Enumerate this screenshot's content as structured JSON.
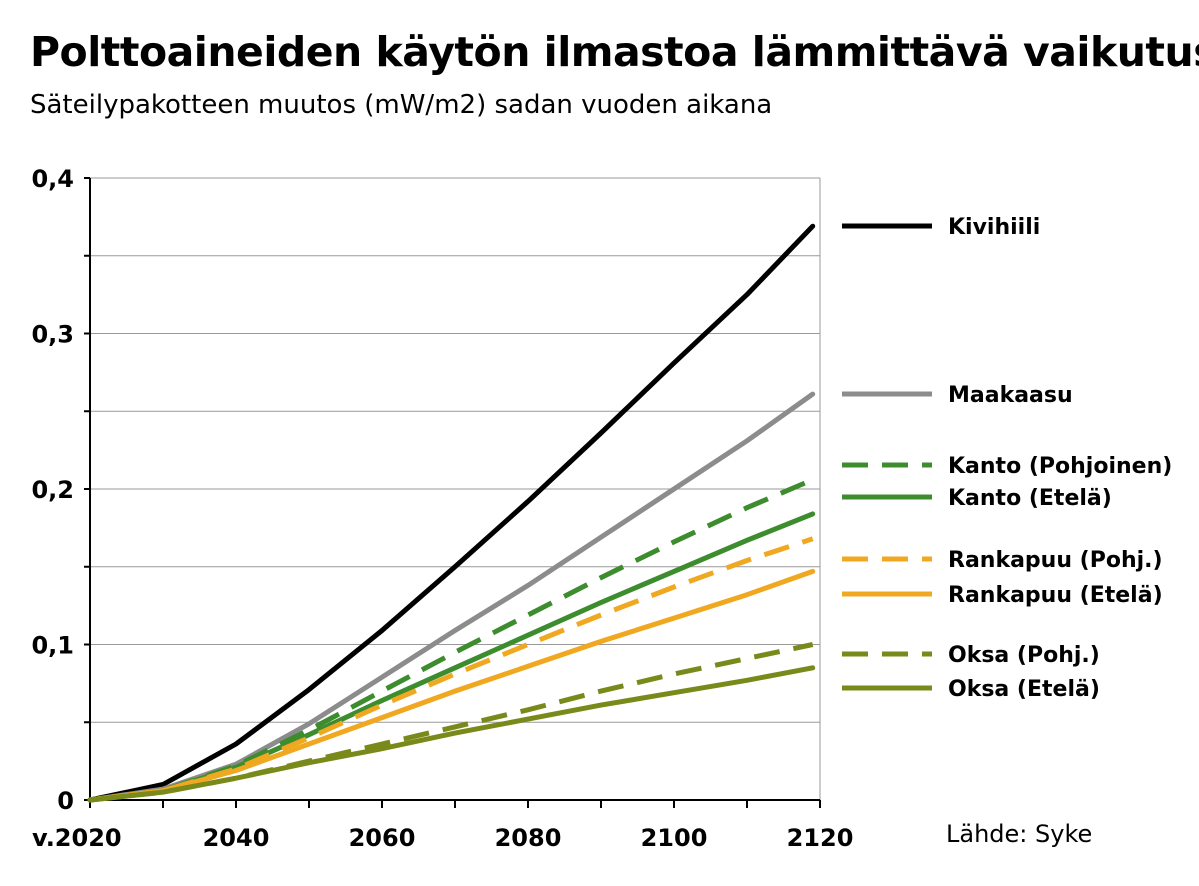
{
  "title": "Polttoaineiden käytön ilmastoa lämmittävä vaikutus",
  "subtitle": "Säteilypakotteen muutos (mW/m2) sadan vuoden aikana",
  "source": "Lähde: Syke",
  "chart_data": {
    "type": "line",
    "title": "Polttoaineiden käytön ilmastoa lämmittävä vaikutus",
    "subtitle": "Säteilypakotteen muutos (mW/m2) sadan vuoden aikana",
    "xlabel": "",
    "ylabel": "",
    "xlim": [
      2020,
      2120
    ],
    "ylim": [
      0,
      0.4
    ],
    "x_ticks": [
      2020,
      2040,
      2060,
      2080,
      2100,
      2120
    ],
    "x_tick_labels": [
      "v.2020",
      "2040",
      "2060",
      "2080",
      "2100",
      "2120"
    ],
    "y_ticks": [
      0,
      0.1,
      0.2,
      0.3,
      0.4
    ],
    "y_tick_labels": [
      "0",
      "0,1",
      "0,2",
      "0,3",
      "0,4"
    ],
    "grid": true,
    "legend_position": "right",
    "x": [
      2020,
      2030,
      2040,
      2050,
      2060,
      2070,
      2080,
      2090,
      2100,
      2110,
      2119
    ],
    "series": [
      {
        "name": "Kivihiili",
        "color": "#000000",
        "dash": "solid",
        "values": [
          0,
          0.01,
          0.036,
          0.071,
          0.109,
          0.15,
          0.192,
          0.236,
          0.281,
          0.325,
          0.369
        ]
      },
      {
        "name": "Maakaasu",
        "color": "#8c8c8c",
        "dash": "solid",
        "values": [
          0,
          0.007,
          0.023,
          0.049,
          0.079,
          0.109,
          0.138,
          0.169,
          0.2,
          0.231,
          0.261
        ]
      },
      {
        "name": "Kanto (Pohjoinen)",
        "color": "#3d8c2e",
        "dash": "dashed",
        "values": [
          0,
          0.006,
          0.022,
          0.045,
          0.07,
          0.095,
          0.119,
          0.143,
          0.166,
          0.188,
          0.206
        ]
      },
      {
        "name": "Kanto (Etelä)",
        "color": "#3d8c2e",
        "dash": "solid",
        "values": [
          0,
          0.006,
          0.021,
          0.042,
          0.064,
          0.085,
          0.106,
          0.127,
          0.147,
          0.167,
          0.184
        ]
      },
      {
        "name": "Rankapuu (Pohj.)",
        "color": "#f0a820",
        "dash": "dashed",
        "values": [
          0,
          0.006,
          0.02,
          0.04,
          0.061,
          0.081,
          0.1,
          0.119,
          0.137,
          0.154,
          0.168
        ]
      },
      {
        "name": "Rankapuu (Etelä)",
        "color": "#f0a820",
        "dash": "solid",
        "values": [
          0,
          0.006,
          0.019,
          0.036,
          0.053,
          0.07,
          0.086,
          0.102,
          0.117,
          0.132,
          0.147
        ]
      },
      {
        "name": "Oksa (Pohj.)",
        "color": "#7a8a1a",
        "dash": "dashed",
        "values": [
          0,
          0.005,
          0.014,
          0.025,
          0.036,
          0.047,
          0.058,
          0.07,
          0.081,
          0.091,
          0.1
        ]
      },
      {
        "name": "Oksa (Etelä)",
        "color": "#7a8a1a",
        "dash": "solid",
        "values": [
          0,
          0.005,
          0.014,
          0.024,
          0.033,
          0.043,
          0.052,
          0.061,
          0.069,
          0.077,
          0.085
        ]
      }
    ]
  }
}
